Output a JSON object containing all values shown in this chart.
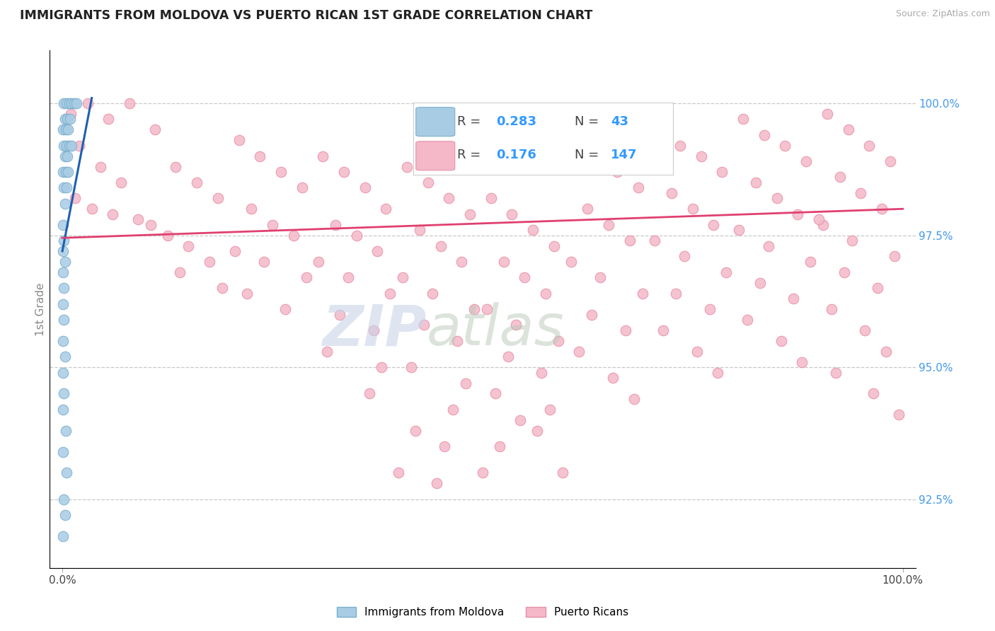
{
  "title": "IMMIGRANTS FROM MOLDOVA VS PUERTO RICAN 1ST GRADE CORRELATION CHART",
  "source": "Source: ZipAtlas.com",
  "ylabel": "1st Grade",
  "y_ticks": [
    92.5,
    95.0,
    97.5,
    100.0
  ],
  "y_tick_labels": [
    "92.5%",
    "95.0%",
    "97.5%",
    "100.0%"
  ],
  "y_min": 91.2,
  "y_max": 101.0,
  "x_min": -1.5,
  "x_max": 101.5,
  "legend_R_blue": "0.283",
  "legend_N_blue": "43",
  "legend_R_pink": "0.176",
  "legend_N_pink": "147",
  "legend_label_blue": "Immigrants from Moldova",
  "legend_label_pink": "Puerto Ricans",
  "blue_color": "#a8cce4",
  "pink_color": "#f4b8c8",
  "blue_edge_color": "#7aaece",
  "pink_edge_color": "#e890a8",
  "blue_line_color": "#2060b0",
  "pink_line_color": "#e04070",
  "watermark_zip_color": "#c8d4e8",
  "watermark_atlas_color": "#b8c8b8",
  "background_color": "#ffffff",
  "grid_color": "#bbbbbb",
  "blue_line_x": [
    0.0,
    3.5
  ],
  "blue_line_y": [
    97.2,
    100.1
  ],
  "pink_line_x": [
    0.0,
    100.0
  ],
  "pink_line_y": [
    97.45,
    98.0
  ],
  "blue_scatter": [
    [
      0.2,
      100.0
    ],
    [
      0.5,
      100.0
    ],
    [
      0.8,
      100.0
    ],
    [
      1.1,
      100.0
    ],
    [
      1.4,
      100.0
    ],
    [
      1.7,
      100.0
    ],
    [
      0.3,
      99.7
    ],
    [
      0.6,
      99.7
    ],
    [
      0.9,
      99.7
    ],
    [
      0.1,
      99.5
    ],
    [
      0.4,
      99.5
    ],
    [
      0.7,
      99.5
    ],
    [
      0.2,
      99.2
    ],
    [
      0.5,
      99.2
    ],
    [
      0.8,
      99.2
    ],
    [
      1.1,
      99.2
    ],
    [
      0.3,
      99.0
    ],
    [
      0.6,
      99.0
    ],
    [
      0.1,
      98.7
    ],
    [
      0.4,
      98.7
    ],
    [
      0.7,
      98.7
    ],
    [
      0.2,
      98.4
    ],
    [
      0.5,
      98.4
    ],
    [
      0.3,
      98.1
    ],
    [
      0.1,
      97.7
    ],
    [
      0.2,
      97.4
    ],
    [
      0.1,
      97.2
    ],
    [
      0.3,
      97.0
    ],
    [
      0.1,
      96.8
    ],
    [
      0.2,
      96.5
    ],
    [
      0.1,
      96.2
    ],
    [
      0.2,
      95.9
    ],
    [
      0.1,
      95.5
    ],
    [
      0.3,
      95.2
    ],
    [
      0.1,
      94.9
    ],
    [
      0.2,
      94.5
    ],
    [
      0.1,
      94.2
    ],
    [
      0.4,
      93.8
    ],
    [
      0.1,
      93.4
    ],
    [
      0.5,
      93.0
    ],
    [
      0.2,
      92.5
    ],
    [
      0.3,
      92.2
    ],
    [
      0.1,
      91.8
    ]
  ],
  "pink_scatter": [
    [
      1.0,
      99.8
    ],
    [
      3.0,
      100.0
    ],
    [
      5.5,
      99.7
    ],
    [
      8.0,
      100.0
    ],
    [
      2.0,
      99.2
    ],
    [
      4.5,
      98.8
    ],
    [
      7.0,
      98.5
    ],
    [
      1.5,
      98.2
    ],
    [
      3.5,
      98.0
    ],
    [
      6.0,
      97.9
    ],
    [
      9.0,
      97.8
    ],
    [
      11.0,
      99.5
    ],
    [
      13.5,
      98.8
    ],
    [
      16.0,
      98.5
    ],
    [
      18.5,
      98.2
    ],
    [
      10.5,
      97.7
    ],
    [
      12.5,
      97.5
    ],
    [
      15.0,
      97.3
    ],
    [
      17.5,
      97.0
    ],
    [
      14.0,
      96.8
    ],
    [
      19.0,
      96.5
    ],
    [
      21.0,
      99.3
    ],
    [
      23.5,
      99.0
    ],
    [
      26.0,
      98.7
    ],
    [
      28.5,
      98.4
    ],
    [
      22.5,
      98.0
    ],
    [
      25.0,
      97.7
    ],
    [
      27.5,
      97.5
    ],
    [
      20.5,
      97.2
    ],
    [
      24.0,
      97.0
    ],
    [
      29.0,
      96.7
    ],
    [
      22.0,
      96.4
    ],
    [
      26.5,
      96.1
    ],
    [
      31.0,
      99.0
    ],
    [
      33.5,
      98.7
    ],
    [
      36.0,
      98.4
    ],
    [
      38.5,
      98.0
    ],
    [
      32.5,
      97.7
    ],
    [
      35.0,
      97.5
    ],
    [
      37.5,
      97.2
    ],
    [
      30.5,
      97.0
    ],
    [
      34.0,
      96.7
    ],
    [
      39.0,
      96.4
    ],
    [
      33.0,
      96.0
    ],
    [
      37.0,
      95.7
    ],
    [
      31.5,
      95.3
    ],
    [
      38.0,
      95.0
    ],
    [
      36.5,
      94.5
    ],
    [
      41.0,
      98.8
    ],
    [
      43.5,
      98.5
    ],
    [
      46.0,
      98.2
    ],
    [
      48.5,
      97.9
    ],
    [
      42.5,
      97.6
    ],
    [
      45.0,
      97.3
    ],
    [
      47.5,
      97.0
    ],
    [
      40.5,
      96.7
    ],
    [
      44.0,
      96.4
    ],
    [
      49.0,
      96.1
    ],
    [
      43.0,
      95.8
    ],
    [
      47.0,
      95.5
    ],
    [
      41.5,
      95.0
    ],
    [
      48.0,
      94.7
    ],
    [
      46.5,
      94.2
    ],
    [
      42.0,
      93.8
    ],
    [
      45.5,
      93.5
    ],
    [
      40.0,
      93.0
    ],
    [
      44.5,
      92.8
    ],
    [
      51.0,
      98.2
    ],
    [
      53.5,
      97.9
    ],
    [
      56.0,
      97.6
    ],
    [
      58.5,
      97.3
    ],
    [
      52.5,
      97.0
    ],
    [
      55.0,
      96.7
    ],
    [
      57.5,
      96.4
    ],
    [
      50.5,
      96.1
    ],
    [
      54.0,
      95.8
    ],
    [
      59.0,
      95.5
    ],
    [
      53.0,
      95.2
    ],
    [
      57.0,
      94.9
    ],
    [
      51.5,
      94.5
    ],
    [
      58.0,
      94.2
    ],
    [
      56.5,
      93.8
    ],
    [
      52.0,
      93.5
    ],
    [
      50.0,
      93.0
    ],
    [
      54.5,
      94.0
    ],
    [
      59.5,
      93.0
    ],
    [
      61.0,
      99.3
    ],
    [
      63.5,
      99.0
    ],
    [
      66.0,
      98.7
    ],
    [
      68.5,
      98.4
    ],
    [
      62.5,
      98.0
    ],
    [
      65.0,
      97.7
    ],
    [
      67.5,
      97.4
    ],
    [
      60.5,
      97.0
    ],
    [
      64.0,
      96.7
    ],
    [
      69.0,
      96.4
    ],
    [
      63.0,
      96.0
    ],
    [
      67.0,
      95.7
    ],
    [
      61.5,
      95.3
    ],
    [
      65.5,
      94.8
    ],
    [
      68.0,
      94.4
    ],
    [
      71.0,
      99.5
    ],
    [
      73.5,
      99.2
    ],
    [
      76.0,
      99.0
    ],
    [
      78.5,
      98.7
    ],
    [
      72.5,
      98.3
    ],
    [
      75.0,
      98.0
    ],
    [
      77.5,
      97.7
    ],
    [
      70.5,
      97.4
    ],
    [
      74.0,
      97.1
    ],
    [
      79.0,
      96.8
    ],
    [
      73.0,
      96.4
    ],
    [
      77.0,
      96.1
    ],
    [
      71.5,
      95.7
    ],
    [
      75.5,
      95.3
    ],
    [
      78.0,
      94.9
    ],
    [
      81.0,
      99.7
    ],
    [
      83.5,
      99.4
    ],
    [
      86.0,
      99.2
    ],
    [
      88.5,
      98.9
    ],
    [
      82.5,
      98.5
    ],
    [
      85.0,
      98.2
    ],
    [
      87.5,
      97.9
    ],
    [
      80.5,
      97.6
    ],
    [
      84.0,
      97.3
    ],
    [
      89.0,
      97.0
    ],
    [
      83.0,
      96.6
    ],
    [
      87.0,
      96.3
    ],
    [
      81.5,
      95.9
    ],
    [
      85.5,
      95.5
    ],
    [
      88.0,
      95.1
    ],
    [
      91.0,
      99.8
    ],
    [
      93.5,
      99.5
    ],
    [
      96.0,
      99.2
    ],
    [
      98.5,
      98.9
    ],
    [
      92.5,
      98.6
    ],
    [
      95.0,
      98.3
    ],
    [
      97.5,
      98.0
    ],
    [
      90.5,
      97.7
    ],
    [
      94.0,
      97.4
    ],
    [
      99.0,
      97.1
    ],
    [
      93.0,
      96.8
    ],
    [
      97.0,
      96.5
    ],
    [
      91.5,
      96.1
    ],
    [
      95.5,
      95.7
    ],
    [
      98.0,
      95.3
    ],
    [
      92.0,
      94.9
    ],
    [
      96.5,
      94.5
    ],
    [
      99.5,
      94.1
    ],
    [
      90.0,
      97.8
    ]
  ]
}
